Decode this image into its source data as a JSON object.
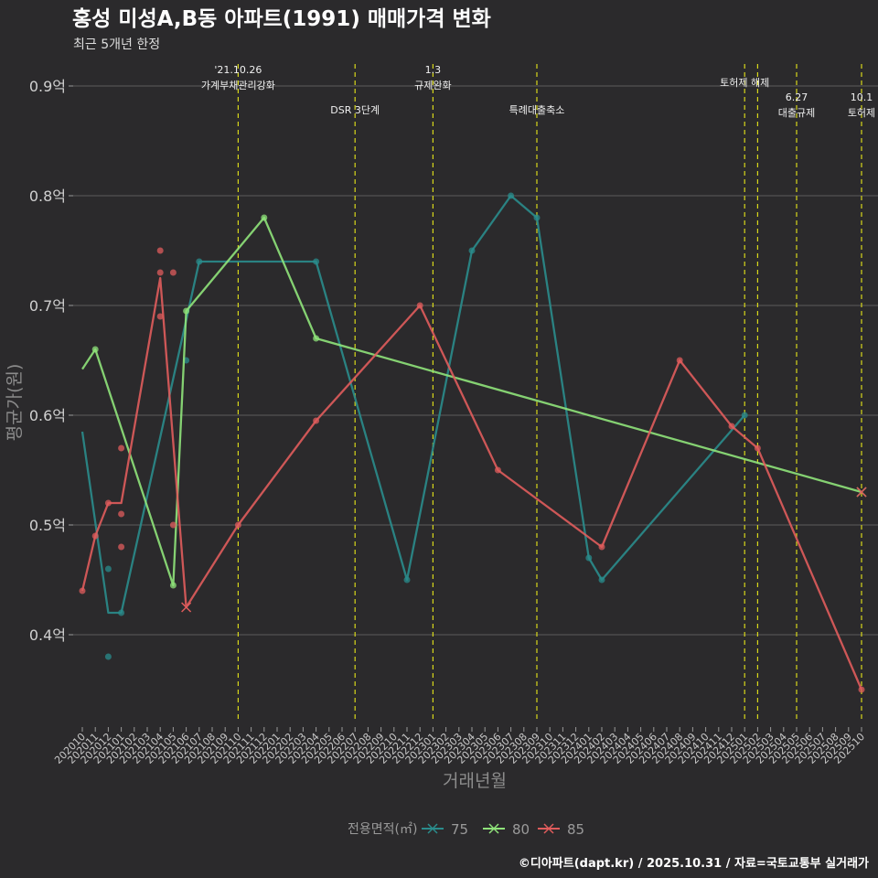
{
  "chart_data": {
    "type": "line",
    "title": "홍성 미성A,B동 아파트(1991) 매매가격 변화",
    "subtitle": "최근 5개년 한정",
    "xlabel": "거래년월",
    "ylabel": "평균가(원)",
    "caption": "©디아파트(dapt.kr) / 2025.10.31 / 자료=국토교통부 실거래가",
    "ylim": [
      0.32,
      0.92
    ],
    "yticks": [
      {
        "value": 0.4,
        "label": "0.4억"
      },
      {
        "value": 0.5,
        "label": "0.5억"
      },
      {
        "value": 0.6,
        "label": "0.6억"
      },
      {
        "value": 0.7,
        "label": "0.7억"
      },
      {
        "value": 0.8,
        "label": "0.8억"
      },
      {
        "value": 0.9,
        "label": "0.9억"
      }
    ],
    "categories": [
      "202010",
      "202011",
      "202012",
      "202101",
      "202102",
      "202103",
      "202104",
      "202105",
      "202106",
      "202107",
      "202108",
      "202109",
      "202110",
      "202111",
      "202112",
      "202201",
      "202202",
      "202203",
      "202204",
      "202205",
      "202206",
      "202207",
      "202208",
      "202209",
      "202210",
      "202211",
      "202212",
      "202301",
      "202302",
      "202303",
      "202304",
      "202305",
      "202306",
      "202307",
      "202308",
      "202309",
      "202310",
      "202311",
      "202312",
      "202401",
      "202402",
      "202403",
      "202404",
      "202405",
      "202406",
      "202407",
      "202408",
      "202409",
      "202410",
      "202411",
      "202412",
      "202501",
      "202502",
      "202503",
      "202504",
      "202505",
      "202506",
      "202507",
      "202508",
      "202509",
      "202510"
    ],
    "legend_title": "전용면적(㎡)",
    "series": [
      {
        "name": "75",
        "color": "#2a8c8c",
        "line": [
          [
            0,
            0.585
          ],
          [
            2,
            0.42
          ],
          [
            3,
            0.42
          ],
          [
            9,
            0.74
          ],
          [
            18,
            0.74
          ],
          [
            25,
            0.45
          ],
          [
            30,
            0.75
          ],
          [
            33,
            0.8
          ],
          [
            35,
            0.78
          ],
          [
            39,
            0.47
          ],
          [
            40,
            0.45
          ],
          [
            51,
            0.6
          ]
        ],
        "points": [
          [
            2,
            0.46
          ],
          [
            2,
            0.38
          ],
          [
            3,
            0.42
          ],
          [
            8,
            0.65
          ],
          [
            9,
            0.74
          ],
          [
            18,
            0.74
          ],
          [
            25,
            0.45
          ],
          [
            30,
            0.75
          ],
          [
            33,
            0.8
          ],
          [
            35,
            0.78
          ],
          [
            39,
            0.47
          ],
          [
            40,
            0.45
          ],
          [
            51,
            0.6
          ]
        ]
      },
      {
        "name": "80",
        "color": "#8fe37a",
        "line": [
          [
            0,
            0.642
          ],
          [
            1,
            0.66
          ],
          [
            7,
            0.445
          ],
          [
            8,
            0.695
          ],
          [
            14,
            0.78
          ],
          [
            18,
            0.67
          ],
          [
            60,
            0.53
          ]
        ],
        "points": [
          [
            1,
            0.66
          ],
          [
            7,
            0.445
          ],
          [
            8,
            0.695
          ],
          [
            14,
            0.78
          ],
          [
            18,
            0.67
          ]
        ],
        "crosses": [
          [
            60,
            0.53
          ]
        ]
      },
      {
        "name": "85",
        "color": "#e05c5c",
        "line": [
          [
            0,
            0.44
          ],
          [
            1,
            0.49
          ],
          [
            2,
            0.52
          ],
          [
            3,
            0.52
          ],
          [
            6,
            0.725
          ],
          [
            8,
            0.425
          ],
          [
            12,
            0.5
          ],
          [
            18,
            0.595
          ],
          [
            26,
            0.7
          ],
          [
            32,
            0.55
          ],
          [
            40,
            0.48
          ],
          [
            46,
            0.65
          ],
          [
            50,
            0.59
          ],
          [
            52,
            0.57
          ],
          [
            60,
            0.35
          ]
        ],
        "points": [
          [
            0,
            0.44
          ],
          [
            1,
            0.49
          ],
          [
            2,
            0.52
          ],
          [
            3,
            0.57
          ],
          [
            3,
            0.51
          ],
          [
            3,
            0.48
          ],
          [
            6,
            0.75
          ],
          [
            6,
            0.73
          ],
          [
            6,
            0.69
          ],
          [
            7,
            0.73
          ],
          [
            7,
            0.5
          ],
          [
            12,
            0.5
          ],
          [
            18,
            0.595
          ],
          [
            26,
            0.7
          ],
          [
            32,
            0.55
          ],
          [
            40,
            0.48
          ],
          [
            46,
            0.65
          ],
          [
            50,
            0.59
          ],
          [
            52,
            0.57
          ],
          [
            60,
            0.35
          ]
        ],
        "crosses": [
          [
            8,
            0.425
          ],
          [
            60,
            0.53
          ]
        ]
      }
    ],
    "annotations": [
      {
        "x": 12,
        "lines": [
          "'21.10.26",
          "가계부채관리강화"
        ],
        "row": 0
      },
      {
        "x": 21,
        "lines": [
          "DSR 3단계"
        ],
        "row": 1
      },
      {
        "x": 27,
        "lines": [
          "1.3",
          "규제완화"
        ],
        "row": 0
      },
      {
        "x": 35,
        "lines": [
          "특례대출축소"
        ],
        "row": 1
      },
      {
        "x": 51,
        "lines": [
          "토허제 해제"
        ],
        "row": 0
      },
      {
        "x": 52,
        "lines": [],
        "row": 0
      },
      {
        "x": 55,
        "lines": [
          "6.27",
          "대출규제"
        ],
        "row": 1
      },
      {
        "x": 60,
        "lines": [
          "10.1",
          "토허제"
        ],
        "row": 1
      }
    ]
  }
}
